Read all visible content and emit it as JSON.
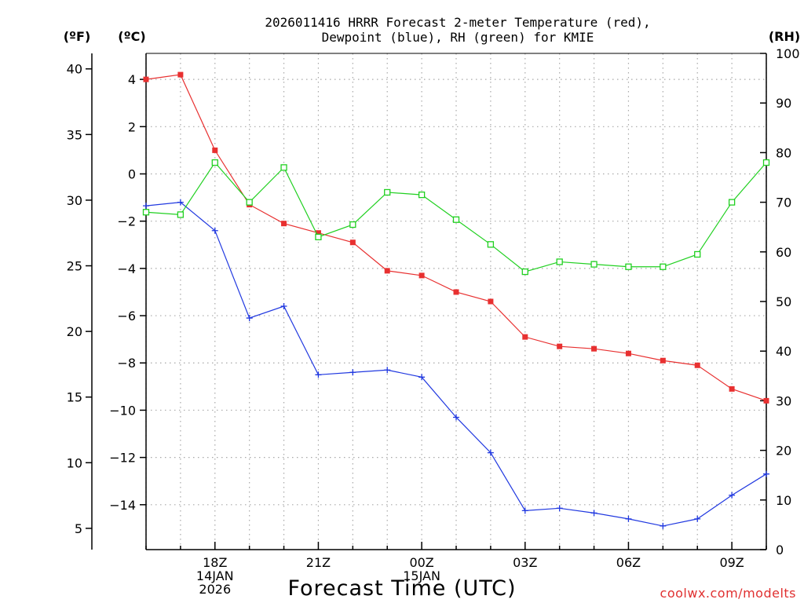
{
  "chart_data": {
    "type": "line",
    "title_line1": "2026011416 HRRR Forecast 2-meter Temperature (red),",
    "title_line2": "Dewpoint (blue), RH (green) for KMIE",
    "units": {
      "fahrenheit": "(ºF)",
      "celsius": "(ºC)",
      "rh": "(RH)"
    },
    "xlabel": "Forecast Time (UTC)",
    "credit": "coolwx.com/modelts",
    "x_hours": [
      16,
      17,
      18,
      19,
      20,
      21,
      22,
      23,
      24,
      25,
      26,
      27,
      28,
      29,
      30,
      31,
      32,
      33,
      34
    ],
    "x_ticks": [
      {
        "hour": 18,
        "lines": [
          "18Z",
          "14JAN",
          "2026"
        ]
      },
      {
        "hour": 21,
        "lines": [
          "21Z"
        ]
      },
      {
        "hour": 24,
        "lines": [
          "00Z",
          "15JAN"
        ]
      },
      {
        "hour": 27,
        "lines": [
          "03Z"
        ]
      },
      {
        "hour": 30,
        "lines": [
          "06Z"
        ]
      },
      {
        "hour": 33,
        "lines": [
          "09Z"
        ]
      }
    ],
    "celsius_range": [
      -15.9,
      5.1
    ],
    "celsius_ticks": [
      "4",
      "2",
      "0",
      "−2",
      "−4",
      "−6",
      "−8",
      "−10",
      "−12",
      "−14"
    ],
    "celsius_tick_values": [
      4,
      2,
      0,
      -2,
      -4,
      -6,
      -8,
      -10,
      -12,
      -14
    ],
    "fahrenheit_ticks": [
      "40",
      "35",
      "30",
      "25",
      "20",
      "15",
      "10",
      "5"
    ],
    "fahrenheit_tick_values": [
      40,
      35,
      30,
      25,
      20,
      15,
      10,
      5
    ],
    "rh_range": [
      0,
      100
    ],
    "rh_ticks": [
      "100",
      "90",
      "80",
      "70",
      "60",
      "50",
      "40",
      "30",
      "20",
      "10",
      "0"
    ],
    "rh_tick_values": [
      100,
      90,
      80,
      70,
      60,
      50,
      40,
      30,
      20,
      10,
      0
    ],
    "series": [
      {
        "name": "Temperature",
        "axis": "celsius",
        "color": "#e83030",
        "marker": "filled-square",
        "values": [
          4.0,
          4.2,
          1.0,
          -1.3,
          -2.1,
          -2.5,
          -2.9,
          -4.1,
          -4.3,
          -5.0,
          -5.4,
          -6.9,
          -7.3,
          -7.4,
          -7.6,
          -7.9,
          -8.1,
          -9.1,
          -9.6
        ]
      },
      {
        "name": "Dewpoint",
        "axis": "celsius",
        "color": "#2038e0",
        "marker": "plus",
        "values": [
          -1.35,
          -1.2,
          -2.4,
          -6.1,
          -5.6,
          -8.5,
          -8.4,
          -8.3,
          -8.6,
          -10.3,
          -11.8,
          -14.25,
          -14.15,
          -14.35,
          -14.6,
          -14.9,
          -14.6,
          -13.6,
          -12.7
        ]
      },
      {
        "name": "RH",
        "axis": "rh",
        "color": "#20d020",
        "marker": "open-square",
        "values": [
          68,
          67.5,
          78,
          70,
          77,
          63,
          65.5,
          72,
          71.5,
          66.5,
          61.5,
          56,
          58,
          57.5,
          57,
          57,
          59.5,
          70,
          78
        ]
      }
    ]
  }
}
